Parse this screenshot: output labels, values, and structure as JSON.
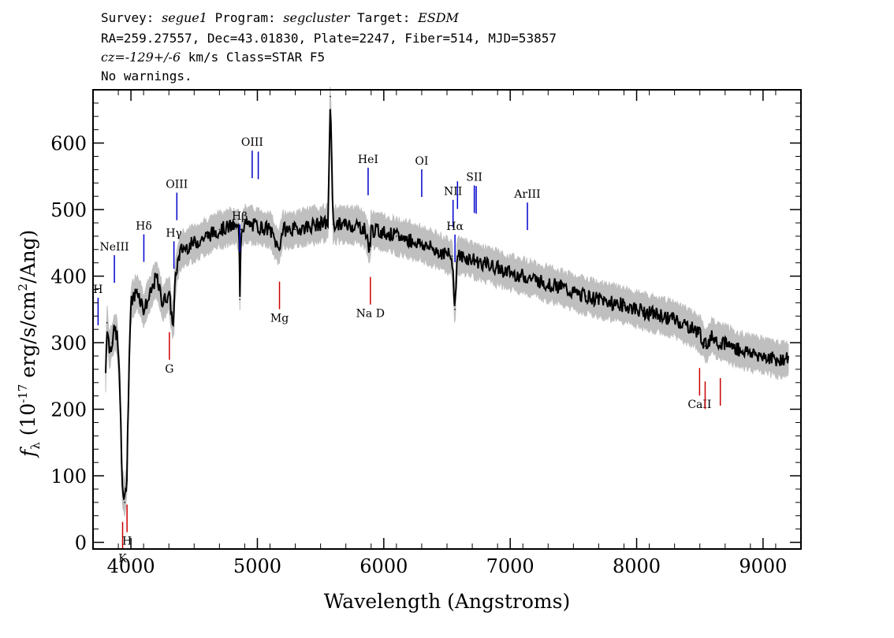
{
  "header": {
    "survey_label": "Survey:",
    "survey": "segue1",
    "program_label": "Program:",
    "program": "segcluster",
    "target_label": "Target:",
    "target": "ESDM",
    "line2": "RA=259.27557, Dec=43.01830, Plate=2247, Fiber=514, MJD=53857",
    "cz_prefix": "cz=",
    "cz_value": "-129+/-6",
    "cz_suffix": " km/s Class=STAR F5",
    "line4": "No warnings."
  },
  "colors": {
    "flux": "#000000",
    "error_band": "#bfbfbf",
    "emission": "#0000cc",
    "absorption": "#cc0000"
  },
  "chart_data": {
    "type": "line",
    "title": "",
    "xlabel": "Wavelength (Angstroms)",
    "ylabel_parts": [
      "f",
      "λ",
      " (10",
      "-17",
      " erg/s/cm",
      "2",
      "/Ang)"
    ],
    "xlim": [
      3700,
      9300
    ],
    "ylim": [
      -10,
      680
    ],
    "x_ticks": [
      4000,
      5000,
      6000,
      7000,
      8000,
      9000
    ],
    "y_ticks": [
      0,
      100,
      200,
      300,
      400,
      500,
      600
    ],
    "series": [
      {
        "x": [
          3800,
          3810,
          3830,
          3850,
          3870,
          3890,
          3910,
          3930,
          3950,
          3968,
          3985,
          4000,
          4050,
          4101,
          4150,
          4200,
          4250,
          4300,
          4330,
          4340,
          4345,
          4360,
          4380,
          4400,
          4500,
          4600,
          4700,
          4800,
          4855,
          4861,
          4870,
          4900,
          5000,
          5100,
          5170,
          5200,
          5300,
          5400,
          5500,
          5560,
          5577,
          5600,
          5700,
          5800,
          5850,
          5890,
          5900,
          6000,
          6100,
          6200,
          6300,
          6400,
          6500,
          6540,
          6563,
          6580,
          6600,
          6700,
          6800,
          6900,
          7000,
          7100,
          7200,
          7300,
          7400,
          7500,
          7600,
          7700,
          7800,
          7900,
          8000,
          8100,
          8200,
          8300,
          8400,
          8500,
          8542,
          8600,
          8662,
          8700,
          8800,
          8900,
          9000,
          9100,
          9200
        ],
        "y": [
          255,
          330,
          290,
          300,
          320,
          310,
          250,
          90,
          60,
          100,
          270,
          360,
          380,
          350,
          370,
          400,
          360,
          375,
          330,
          340,
          380,
          410,
          430,
          440,
          450,
          460,
          470,
          475,
          470,
          365,
          470,
          478,
          475,
          470,
          440,
          470,
          470,
          475,
          478,
          480,
          670,
          478,
          477,
          476,
          470,
          440,
          470,
          466,
          460,
          455,
          448,
          440,
          432,
          430,
          350,
          430,
          430,
          425,
          418,
          412,
          405,
          400,
          395,
          388,
          384,
          375,
          370,
          365,
          360,
          356,
          350,
          345,
          340,
          335,
          325,
          315,
          295,
          310,
          300,
          300,
          290,
          285,
          280,
          275,
          275
        ]
      }
    ],
    "error_band_halfwidth": 25,
    "line_markers": [
      {
        "label": "H",
        "x": 3740,
        "kind": "emission"
      },
      {
        "label": "NeIII",
        "x": 3869,
        "kind": "emission"
      },
      {
        "label": "Hδ",
        "x": 4102,
        "kind": "emission"
      },
      {
        "label": "Hγ",
        "x": 4340,
        "kind": "emission"
      },
      {
        "label": "OIII",
        "x": 4363,
        "kind": "emission"
      },
      {
        "label": "Hβ",
        "x": 4861,
        "kind": "emission"
      },
      {
        "label": "OIII",
        "x": 4959,
        "kind": "emission"
      },
      {
        "label": "OIII",
        "x": 5007,
        "kind": "emission"
      },
      {
        "label": "HeI",
        "x": 5876,
        "kind": "emission"
      },
      {
        "label": "OI",
        "x": 6300,
        "kind": "emission"
      },
      {
        "label": "NII",
        "x": 6548,
        "kind": "emission"
      },
      {
        "label": "Hα",
        "x": 6563,
        "kind": "emission"
      },
      {
        "label": "NII",
        "x": 6583,
        "kind": "emission"
      },
      {
        "label": "SII",
        "x": 6716,
        "kind": "emission"
      },
      {
        "label": "SII",
        "x": 6731,
        "kind": "emission"
      },
      {
        "label": "ArIII",
        "x": 7136,
        "kind": "emission"
      },
      {
        "label": "K",
        "x": 3934,
        "kind": "absorption"
      },
      {
        "label": "H",
        "x": 3969,
        "kind": "absorption"
      },
      {
        "label": "G",
        "x": 4304,
        "kind": "absorption"
      },
      {
        "label": "Mg",
        "x": 5175,
        "kind": "absorption"
      },
      {
        "label": "Na D",
        "x": 5894,
        "kind": "absorption"
      },
      {
        "label": "CaII",
        "x": 8498,
        "kind": "absorption"
      },
      {
        "label": "CaII",
        "x": 8542,
        "kind": "absorption"
      },
      {
        "label": "CaII",
        "x": 8662,
        "kind": "absorption"
      }
    ]
  }
}
